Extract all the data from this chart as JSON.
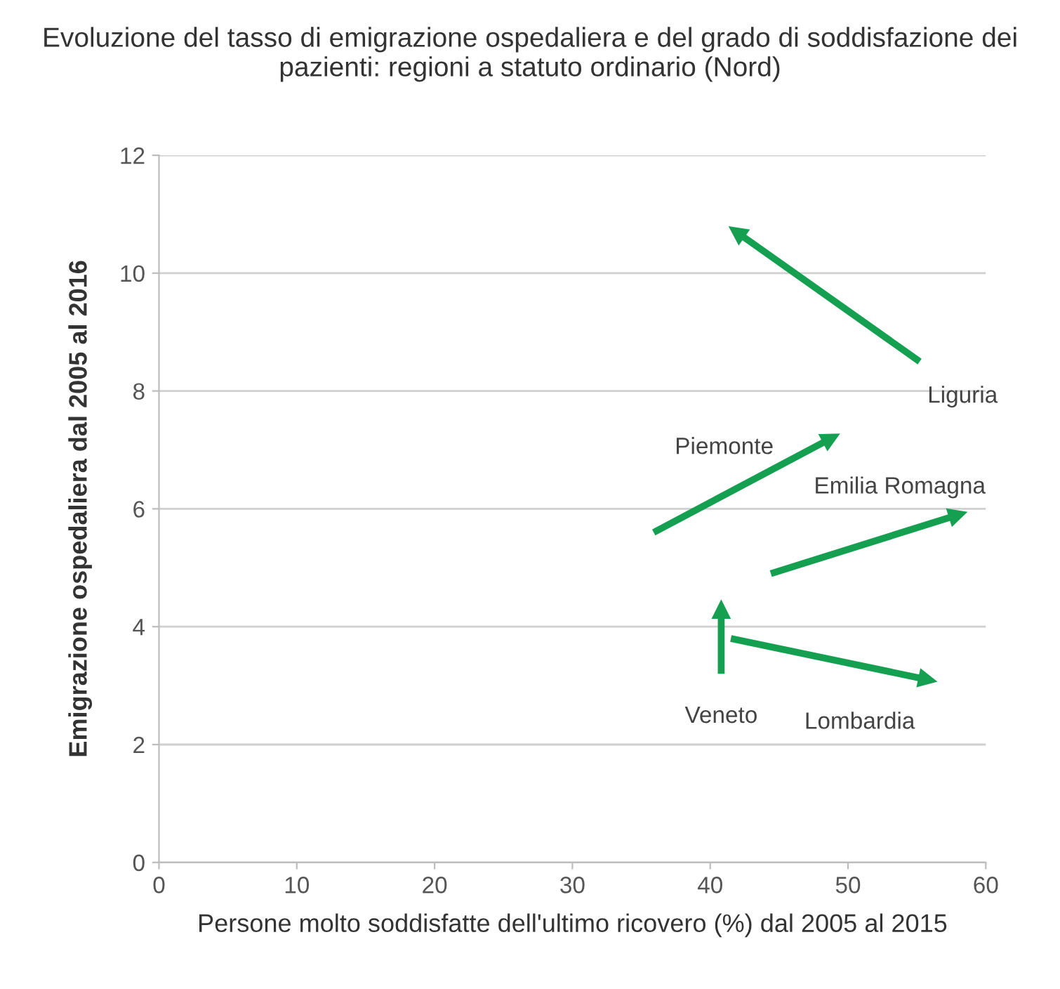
{
  "chart_data": {
    "type": "line",
    "title": "Evoluzione del tasso di emigrazione ospedaliera e del grado di soddisfazione dei pazienti: regioni a statuto ordinario (Nord)",
    "xlabel": "Persone molto soddisfatte dell'ultimo ricovero (%) dal 2005 al 2015",
    "ylabel": "Emigrazione ospedaliera dal 2005 al 2016",
    "xlim": [
      0,
      60
    ],
    "xticks": [
      0,
      10,
      20,
      30,
      40,
      50,
      60
    ],
    "ylim": [
      0,
      12
    ],
    "yticks": [
      0,
      2,
      4,
      6,
      8,
      10,
      12
    ],
    "grid": "y",
    "line_style": "solid",
    "series": [
      {
        "name": "Liguria",
        "color": "#14a050",
        "x": [
          55.2,
          41.9
        ],
        "values": [
          8.5,
          10.7
        ]
      },
      {
        "name": "Piemonte",
        "color": "#14a050",
        "x": [
          35.9,
          48.8
        ],
        "values": [
          5.6,
          7.2
        ]
      },
      {
        "name": "Emilia Romagna",
        "color": "#14a050",
        "x": [
          44.4,
          58.0
        ],
        "values": [
          4.9,
          5.9
        ]
      },
      {
        "name": "Veneto",
        "color": "#14a050",
        "x": [
          40.8,
          40.8
        ],
        "values": [
          3.2,
          4.3
        ]
      },
      {
        "name": "Lombardia",
        "color": "#14a050",
        "x": [
          41.5,
          55.8
        ],
        "values": [
          3.8,
          3.1
        ]
      }
    ]
  }
}
